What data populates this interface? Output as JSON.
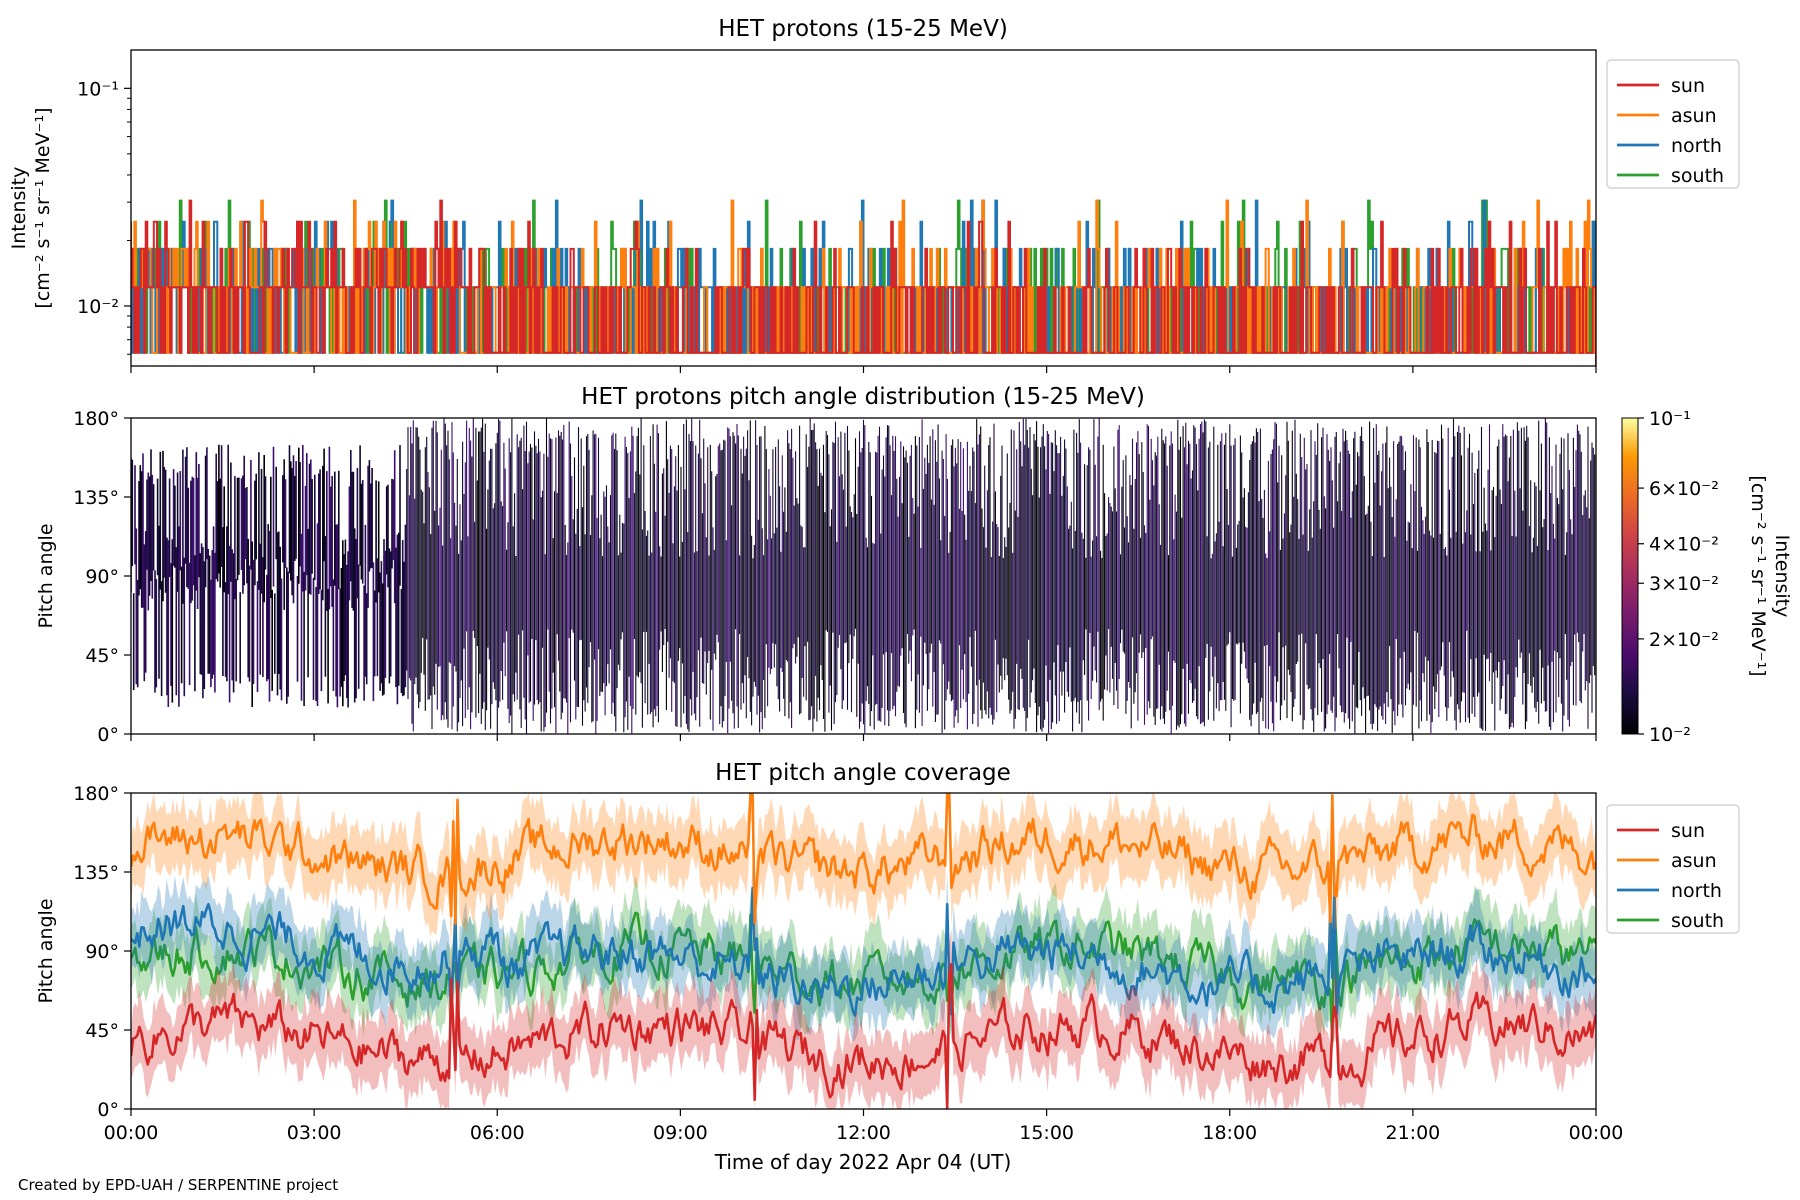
{
  "chart_data": [
    {
      "type": "line",
      "title": "HET protons (15-25 MeV)",
      "ylabel_line1": "Intensity",
      "ylabel_line2": "[cm⁻² s⁻¹ sr⁻¹ MeV⁻¹]",
      "yscale": "log",
      "ylim": [
        0.0053,
        0.15
      ],
      "yticks": [
        {
          "value": 0.01,
          "label": "10⁻²"
        },
        {
          "value": 0.1,
          "label": "10⁻¹"
        }
      ],
      "legend_position": "outside-right",
      "levels": [
        0.0061,
        0.0122,
        0.0183,
        0.0244,
        0.0305
      ],
      "series": [
        {
          "name": "sun",
          "color": "#d62728"
        },
        {
          "name": "asun",
          "color": "#ff7f0e"
        },
        {
          "name": "north",
          "color": "#1f77b4"
        },
        {
          "name": "south",
          "color": "#2ca02c"
        }
      ]
    },
    {
      "type": "heatmap",
      "title": "HET protons pitch angle distribution (15-25 MeV)",
      "ylabel": "Pitch angle",
      "ylim": [
        0,
        180
      ],
      "yticks": [
        "0°",
        "45°",
        "90°",
        "135°",
        "180°"
      ],
      "colorbar": {
        "label_line1": "Intensity",
        "label_line2": "[cm⁻² s⁻¹ sr⁻¹ MeV⁻¹]",
        "scale": "log",
        "range": [
          0.01,
          0.1
        ],
        "colormap": "inferno",
        "ticks": [
          {
            "value": 0.01,
            "label": "10⁻²"
          },
          {
            "value": 0.02,
            "label": "2×10⁻²"
          },
          {
            "value": 0.03,
            "label": "3×10⁻²"
          },
          {
            "value": 0.04,
            "label": "4×10⁻²"
          },
          {
            "value": 0.06,
            "label": "6×10⁻²"
          },
          {
            "value": 0.1,
            "label": "10⁻¹"
          }
        ]
      }
    },
    {
      "type": "line",
      "title": "HET pitch angle coverage",
      "ylabel": "Pitch angle",
      "ylim": [
        0,
        180
      ],
      "yticks": [
        "0°",
        "45°",
        "90°",
        "135°",
        "180°"
      ],
      "xlabel": "Time of day 2022 Apr 04 (UT)",
      "xticks": [
        "00:00",
        "03:00",
        "06:00",
        "09:00",
        "12:00",
        "15:00",
        "18:00",
        "21:00",
        "00:00"
      ],
      "xlim_hours": [
        0,
        24
      ],
      "legend_position": "outside-right",
      "series": [
        {
          "name": "sun",
          "color": "#d62728",
          "mean_deg": 38,
          "spread_deg": 14
        },
        {
          "name": "asun",
          "color": "#ff7f0e",
          "mean_deg": 145,
          "spread_deg": 14
        },
        {
          "name": "north",
          "color": "#1f77b4",
          "mean_deg": 95,
          "spread_deg": 14
        },
        {
          "name": "south",
          "color": "#2ca02c",
          "mean_deg": 82,
          "spread_deg": 14
        }
      ]
    }
  ],
  "credit": "Created by EPD-UAH / SERPENTINE project"
}
